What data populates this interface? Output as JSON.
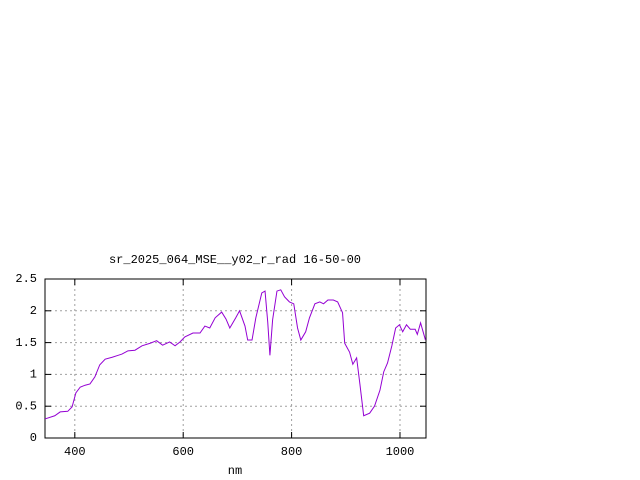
{
  "chart_data": {
    "type": "line",
    "title": "sr_2025_064_MSE__y02_r_rad 16-50-00",
    "x_label": "nm",
    "x": [
      345,
      363,
      373,
      387,
      395,
      402,
      410,
      419,
      428,
      437,
      446,
      456,
      469,
      480,
      487,
      498,
      511,
      524,
      539,
      551,
      562,
      575,
      585,
      594,
      603,
      618,
      631,
      640,
      649,
      659,
      671,
      679,
      686,
      697,
      704,
      714,
      719,
      727,
      734,
      745,
      751,
      756,
      760,
      765,
      773,
      780,
      787,
      796,
      804,
      811,
      817,
      826,
      833,
      843,
      852,
      859,
      867,
      877,
      885,
      894,
      898,
      907,
      913,
      920,
      926,
      933,
      944,
      953,
      963,
      970,
      977,
      985,
      992,
      999,
      1005,
      1012,
      1019,
      1028,
      1032,
      1038,
      1047
    ],
    "series": [
      {
        "color": "#9400d3",
        "values": [
          0.3,
          0.35,
          0.41,
          0.42,
          0.49,
          0.71,
          0.8,
          0.83,
          0.85,
          0.96,
          1.15,
          1.24,
          1.27,
          1.3,
          1.32,
          1.37,
          1.38,
          1.45,
          1.49,
          1.53,
          1.46,
          1.51,
          1.45,
          1.51,
          1.59,
          1.65,
          1.65,
          1.76,
          1.73,
          1.89,
          1.98,
          1.87,
          1.73,
          1.89,
          2.0,
          1.76,
          1.54,
          1.54,
          1.89,
          2.28,
          2.31,
          1.82,
          1.3,
          1.86,
          2.31,
          2.33,
          2.22,
          2.14,
          2.11,
          1.73,
          1.54,
          1.67,
          1.89,
          2.11,
          2.14,
          2.11,
          2.17,
          2.17,
          2.14,
          1.97,
          1.49,
          1.35,
          1.16,
          1.26,
          0.85,
          0.35,
          0.39,
          0.5,
          0.75,
          1.04,
          1.18,
          1.45,
          1.73,
          1.78,
          1.67,
          1.78,
          1.71,
          1.71,
          1.63,
          1.81,
          1.54
        ]
      }
    ],
    "xlim": [
      345,
      1048
    ],
    "xticks": [
      400,
      600,
      800,
      1000
    ],
    "ylim": [
      0,
      2.5
    ],
    "yticks": [
      0,
      0.5,
      1,
      1.5,
      2,
      2.5
    ],
    "grid": true
  }
}
